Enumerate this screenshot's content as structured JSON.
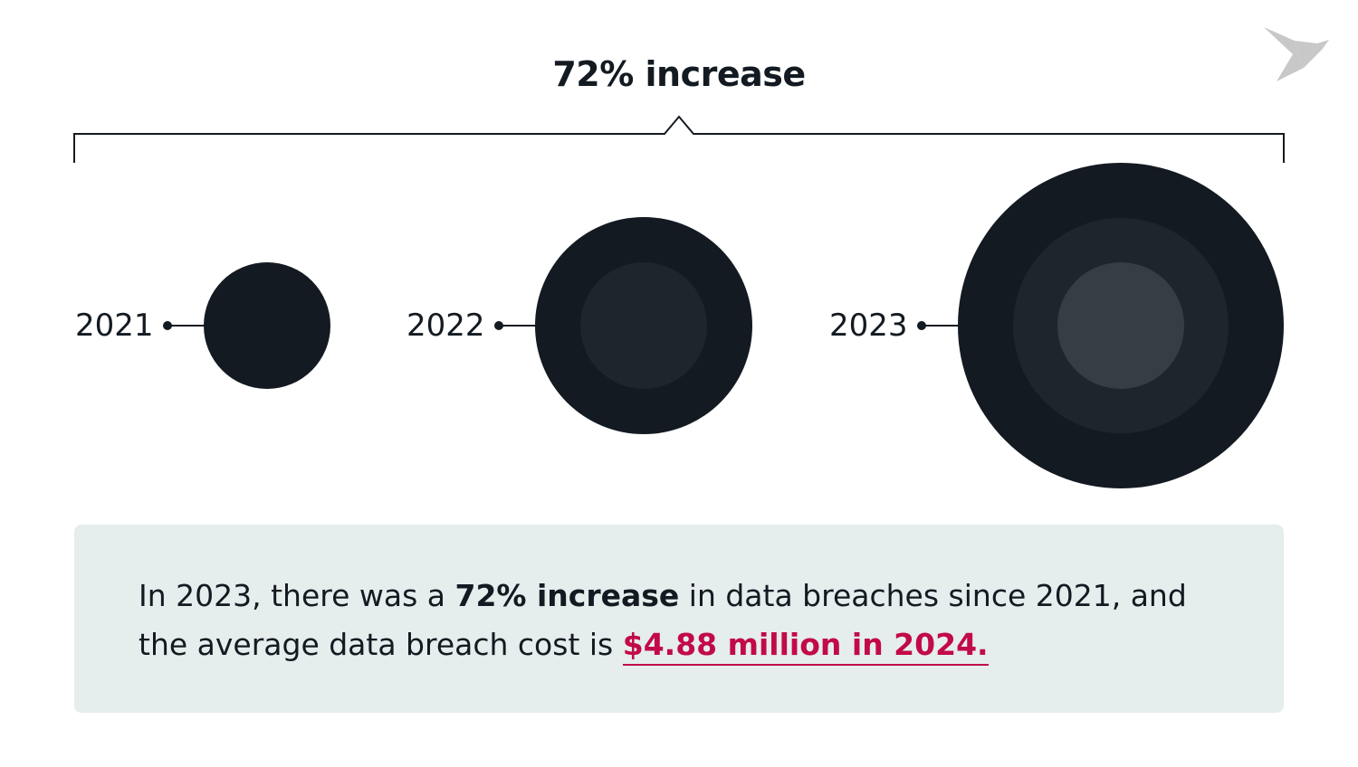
{
  "headline": "72% increase",
  "years": [
    "2021",
    "2022",
    "2023"
  ],
  "colors": {
    "dark": "#131a21",
    "ring2": "#1f252c",
    "ring3": "#363d45",
    "accent": "#c20a48",
    "box": "#e5eded",
    "logo": "#c8c8c8"
  },
  "logo_icon": "origami-bird-icon",
  "summary": {
    "part1": "In 2023, there was a ",
    "bold": "72% increase",
    "part2": " in data breaches since 2021, and the average data breach cost is ",
    "link": "$4.88 million in 2024."
  }
}
